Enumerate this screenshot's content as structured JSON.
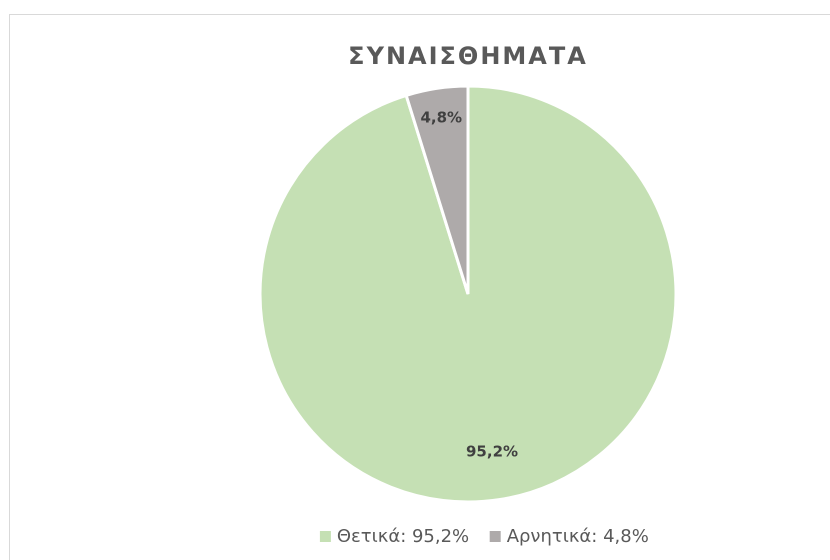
{
  "chart_data": {
    "type": "pie",
    "title": "ΣΥΝΑΙΣΘΗΜΑΤΑ",
    "categories": [
      "Θετικά",
      "Αρνητικά"
    ],
    "values": [
      95.2,
      4.8
    ],
    "value_labels": [
      "95,2%",
      "4,8%"
    ],
    "legend_labels": [
      "Θετικά: 95,2%",
      "Αρνητικά: 4,8%"
    ],
    "colors": [
      "#c5e0b4",
      "#aeaaaa"
    ],
    "legend": "bottom"
  }
}
